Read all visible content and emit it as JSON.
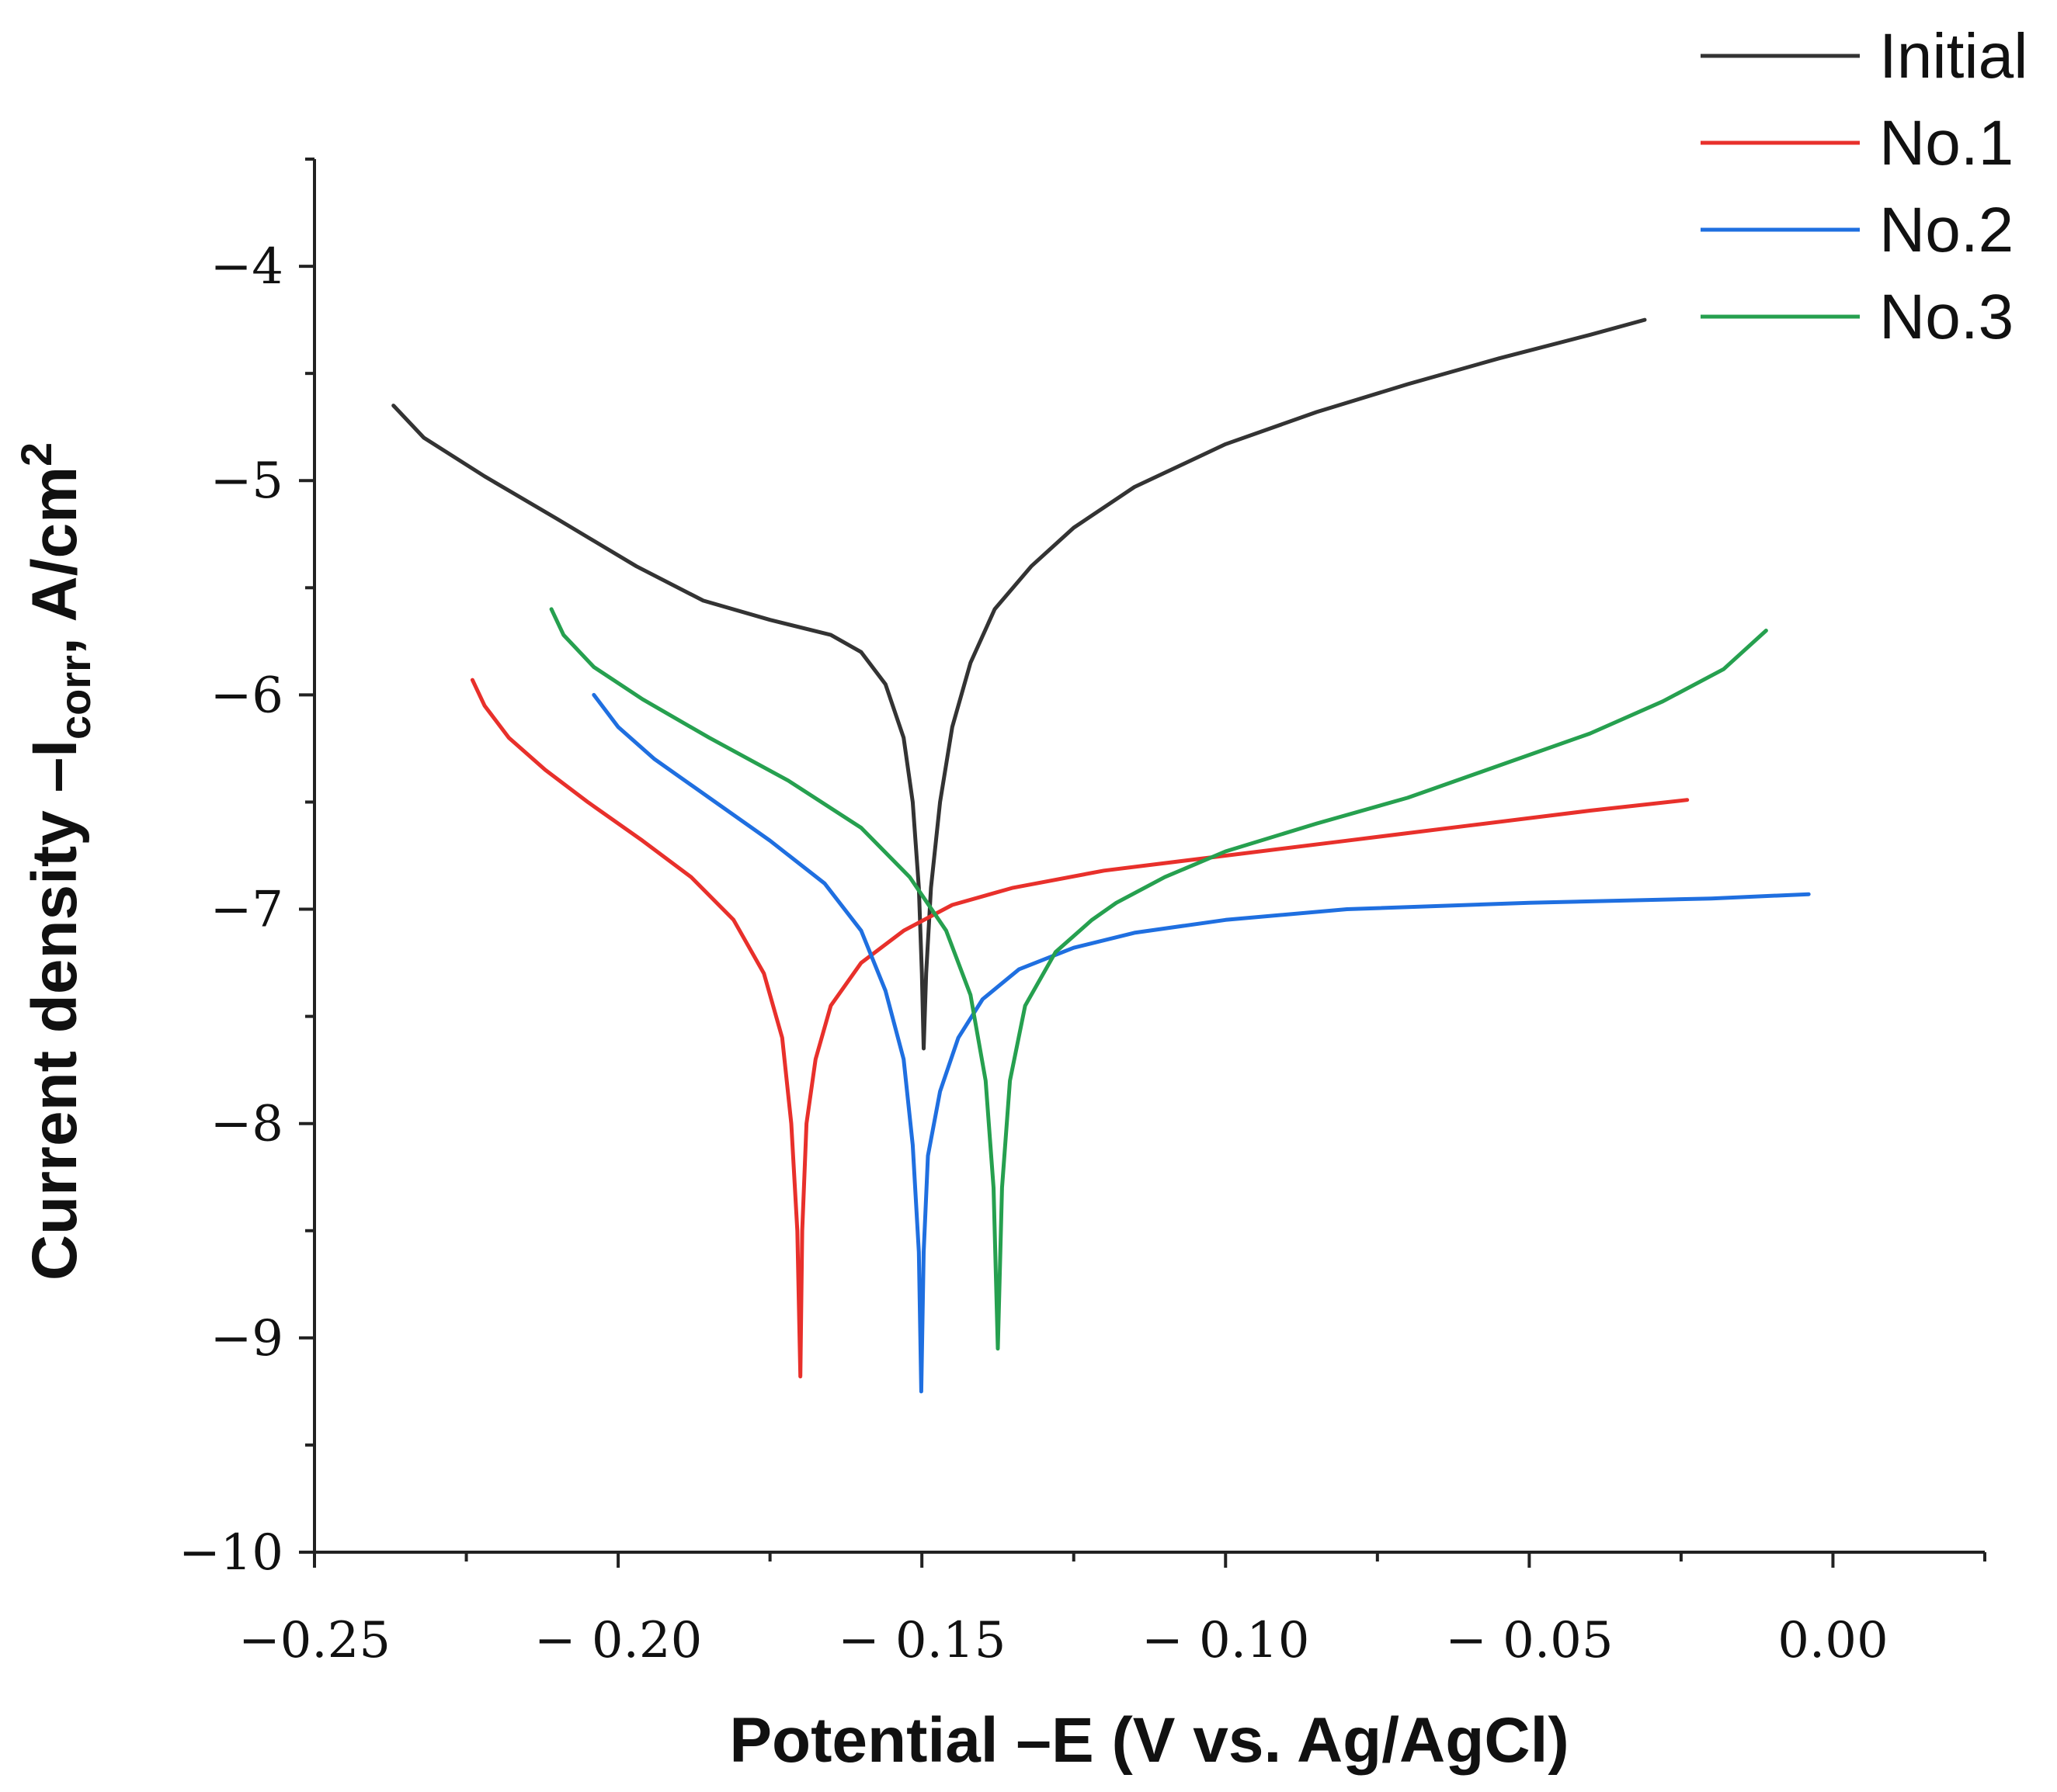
{
  "chart_data": {
    "type": "line",
    "title": "",
    "xlabel": "Potential –E (V vs. Ag/AgCl)",
    "ylabel": "Current density –I",
    "ylabel_sub": "corr",
    "ylabel_unit": ", A/cm",
    "ylabel_sup": "2",
    "xlim": [
      -0.25,
      0.025
    ],
    "ylim": [
      -10,
      -3.5
    ],
    "xticks": [
      -0.25,
      -0.2,
      -0.15,
      -0.1,
      -0.05,
      0.0
    ],
    "xtick_labels": [
      "−0.25",
      "− 0.20",
      "− 0.15",
      "− 0.10",
      "− 0.05",
      "0.00"
    ],
    "yticks": [
      -10,
      -9,
      -8,
      -7,
      -6,
      -5,
      -4
    ],
    "ytick_labels": [
      "−10",
      "−9",
      "−8",
      "−7",
      "−6",
      "−5",
      "−4"
    ],
    "grid": false,
    "legend_position": "top-right",
    "series": [
      {
        "name": "Initial",
        "color": "#333333",
        "points": [
          [
            -0.237,
            -4.65
          ],
          [
            -0.232,
            -4.8
          ],
          [
            -0.222,
            -4.98
          ],
          [
            -0.21,
            -5.18
          ],
          [
            -0.197,
            -5.4
          ],
          [
            -0.186,
            -5.56
          ],
          [
            -0.175,
            -5.65
          ],
          [
            -0.165,
            -5.72
          ],
          [
            -0.16,
            -5.8
          ],
          [
            -0.156,
            -5.95
          ],
          [
            -0.153,
            -6.2
          ],
          [
            -0.1515,
            -6.5
          ],
          [
            -0.1505,
            -6.9
          ],
          [
            -0.15,
            -7.3
          ],
          [
            -0.1497,
            -7.65
          ],
          [
            -0.1493,
            -7.3
          ],
          [
            -0.1485,
            -6.9
          ],
          [
            -0.147,
            -6.5
          ],
          [
            -0.145,
            -6.15
          ],
          [
            -0.142,
            -5.85
          ],
          [
            -0.138,
            -5.6
          ],
          [
            -0.132,
            -5.4
          ],
          [
            -0.125,
            -5.22
          ],
          [
            -0.115,
            -5.03
          ],
          [
            -0.1,
            -4.83
          ],
          [
            -0.085,
            -4.68
          ],
          [
            -0.07,
            -4.55
          ],
          [
            -0.055,
            -4.43
          ],
          [
            -0.04,
            -4.32
          ],
          [
            -0.031,
            -4.25
          ]
        ]
      },
      {
        "name": "No.1",
        "color": "#e8302b",
        "points": [
          [
            -0.224,
            -5.93
          ],
          [
            -0.222,
            -6.05
          ],
          [
            -0.218,
            -6.2
          ],
          [
            -0.212,
            -6.35
          ],
          [
            -0.205,
            -6.5
          ],
          [
            -0.196,
            -6.68
          ],
          [
            -0.188,
            -6.85
          ],
          [
            -0.181,
            -7.05
          ],
          [
            -0.176,
            -7.3
          ],
          [
            -0.173,
            -7.6
          ],
          [
            -0.1715,
            -8.0
          ],
          [
            -0.1705,
            -8.5
          ],
          [
            -0.17,
            -9.18
          ],
          [
            -0.1697,
            -8.5
          ],
          [
            -0.169,
            -8.0
          ],
          [
            -0.1675,
            -7.7
          ],
          [
            -0.165,
            -7.45
          ],
          [
            -0.16,
            -7.25
          ],
          [
            -0.153,
            -7.1
          ],
          [
            -0.145,
            -6.98
          ],
          [
            -0.135,
            -6.9
          ],
          [
            -0.12,
            -6.82
          ],
          [
            -0.1,
            -6.75
          ],
          [
            -0.08,
            -6.68
          ],
          [
            -0.06,
            -6.61
          ],
          [
            -0.04,
            -6.54
          ],
          [
            -0.024,
            -6.49
          ]
        ]
      },
      {
        "name": "No.2",
        "color": "#1f6fe0",
        "points": [
          [
            -0.204,
            -6.0
          ],
          [
            -0.2,
            -6.15
          ],
          [
            -0.194,
            -6.3
          ],
          [
            -0.185,
            -6.48
          ],
          [
            -0.175,
            -6.68
          ],
          [
            -0.166,
            -6.88
          ],
          [
            -0.16,
            -7.1
          ],
          [
            -0.156,
            -7.38
          ],
          [
            -0.153,
            -7.7
          ],
          [
            -0.1515,
            -8.1
          ],
          [
            -0.1505,
            -8.6
          ],
          [
            -0.1501,
            -9.25
          ],
          [
            -0.1497,
            -8.6
          ],
          [
            -0.149,
            -8.15
          ],
          [
            -0.147,
            -7.85
          ],
          [
            -0.144,
            -7.6
          ],
          [
            -0.14,
            -7.42
          ],
          [
            -0.134,
            -7.28
          ],
          [
            -0.125,
            -7.18
          ],
          [
            -0.115,
            -7.11
          ],
          [
            -0.1,
            -7.05
          ],
          [
            -0.08,
            -7.0
          ],
          [
            -0.05,
            -6.97
          ],
          [
            -0.02,
            -6.95
          ],
          [
            -0.004,
            -6.93
          ]
        ]
      },
      {
        "name": "No.3",
        "color": "#26a04f",
        "points": [
          [
            -0.211,
            -5.6
          ],
          [
            -0.209,
            -5.72
          ],
          [
            -0.204,
            -5.87
          ],
          [
            -0.196,
            -6.02
          ],
          [
            -0.185,
            -6.2
          ],
          [
            -0.172,
            -6.4
          ],
          [
            -0.16,
            -6.62
          ],
          [
            -0.152,
            -6.85
          ],
          [
            -0.146,
            -7.1
          ],
          [
            -0.142,
            -7.4
          ],
          [
            -0.1395,
            -7.8
          ],
          [
            -0.1382,
            -8.3
          ],
          [
            -0.1375,
            -9.05
          ],
          [
            -0.1368,
            -8.3
          ],
          [
            -0.1355,
            -7.8
          ],
          [
            -0.133,
            -7.45
          ],
          [
            -0.128,
            -7.2
          ],
          [
            -0.122,
            -7.05
          ],
          [
            -0.118,
            -6.97
          ],
          [
            -0.11,
            -6.85
          ],
          [
            -0.1,
            -6.73
          ],
          [
            -0.085,
            -6.6
          ],
          [
            -0.07,
            -6.48
          ],
          [
            -0.055,
            -6.33
          ],
          [
            -0.04,
            -6.18
          ],
          [
            -0.028,
            -6.03
          ],
          [
            -0.018,
            -5.88
          ],
          [
            -0.011,
            -5.7
          ]
        ]
      }
    ]
  }
}
